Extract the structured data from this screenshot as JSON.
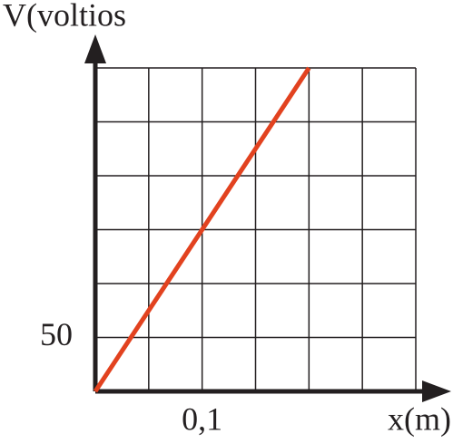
{
  "chart_data": {
    "type": "line",
    "y_label": "V(voltios",
    "x_label": "x(m)",
    "x": [
      0,
      0.2
    ],
    "series": [
      {
        "color": "#e2421f",
        "values": [
          0,
          300
        ]
      }
    ],
    "xlim": [
      0,
      0.3
    ],
    "ylim": [
      0,
      300
    ],
    "xticks": [
      {
        "value": 0.1,
        "label": "0,1"
      }
    ],
    "yticks": [
      50
    ],
    "grid": true
  }
}
